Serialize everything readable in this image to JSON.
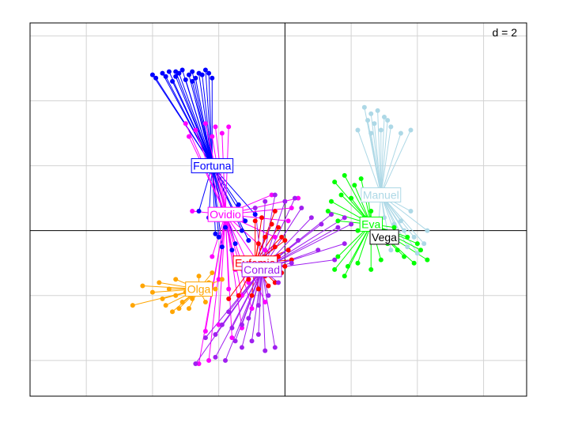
{
  "chart_data": {
    "type": "scatter",
    "title": "",
    "xlabel": "",
    "ylabel": "",
    "scale_label": "d = 2",
    "xlim": [
      -7.7,
      7.3
    ],
    "ylim": [
      -5.1,
      6.4
    ],
    "grid": true,
    "grid_step": 2,
    "axes_through_origin": true,
    "series": [
      {
        "name": "Fortuna",
        "color": "#0000ff",
        "center": [
          -2.2,
          2.0
        ],
        "points": [
          [
            -4.0,
            4.8
          ],
          [
            -3.7,
            4.85
          ],
          [
            -3.5,
            4.9
          ],
          [
            -3.3,
            4.75
          ],
          [
            -3.1,
            4.95
          ],
          [
            -2.9,
            4.8
          ],
          [
            -2.8,
            4.9
          ],
          [
            -2.6,
            4.85
          ],
          [
            -2.4,
            4.95
          ],
          [
            -2.2,
            4.7
          ],
          [
            -3.9,
            4.7
          ],
          [
            -3.4,
            4.6
          ],
          [
            -3.0,
            4.65
          ],
          [
            -2.7,
            4.7
          ],
          [
            -2.5,
            4.8
          ],
          [
            -3.6,
            4.75
          ],
          [
            -3.2,
            4.85
          ],
          [
            -2.3,
            4.85
          ],
          [
            -2.8,
            4.6
          ],
          [
            -3.3,
            4.9
          ],
          [
            -2.6,
            0.6
          ],
          [
            -2.0,
            -0.2
          ],
          [
            -1.8,
            0.1
          ],
          [
            -1.5,
            -0.4
          ],
          [
            -1.2,
            0.3
          ],
          [
            -1.6,
            -0.6
          ],
          [
            -2.3,
            0.4
          ],
          [
            -1.4,
            0.8
          ],
          [
            -1.1,
            -0.3
          ],
          [
            -1.9,
            -0.5
          ],
          [
            -1.7,
            0.4
          ],
          [
            -1.3,
            0.0
          ],
          [
            -2.1,
            -0.1
          ],
          [
            -0.9,
            0.5
          ]
        ]
      },
      {
        "name": "Ovidio",
        "color": "#ff00ff",
        "center": [
          -1.8,
          0.5
        ],
        "points": [
          [
            -3.0,
            3.3
          ],
          [
            -2.7,
            3.1
          ],
          [
            -2.4,
            3.3
          ],
          [
            -2.1,
            3.2
          ],
          [
            -1.9,
            3.0
          ],
          [
            -1.7,
            3.2
          ],
          [
            -2.9,
            2.9
          ],
          [
            -2.2,
            2.9
          ],
          [
            -2.8,
            0.6
          ],
          [
            -2.2,
            -0.8
          ],
          [
            -2.0,
            -1.5
          ],
          [
            -1.7,
            -1.8
          ],
          [
            -1.5,
            -1.2
          ],
          [
            -1.1,
            -1.6
          ],
          [
            -0.8,
            -1.0
          ],
          [
            -0.6,
            -0.6
          ],
          [
            -0.3,
            -0.2
          ],
          [
            0.2,
            0.7
          ],
          [
            0.4,
            1.0
          ],
          [
            -1.3,
            -2.0
          ],
          [
            -2.4,
            -3.1
          ],
          [
            -2.0,
            -2.9
          ],
          [
            -1.6,
            -3.3
          ],
          [
            -1.3,
            -3.0
          ],
          [
            -2.6,
            -4.1
          ],
          [
            -2.3,
            -4.0
          ],
          [
            -0.6,
            -2.2
          ],
          [
            -1.0,
            -2.4
          ],
          [
            0.1,
            0.3
          ],
          [
            -0.4,
            1.1
          ]
        ]
      },
      {
        "name": "Eufemia",
        "color": "#ff0000",
        "center": [
          -0.9,
          -1.0
        ],
        "points": [
          [
            -0.6,
            -0.2
          ],
          [
            -0.3,
            -0.5
          ],
          [
            -0.2,
            -0.8
          ],
          [
            0.0,
            -0.3
          ],
          [
            -0.5,
            -1.1
          ],
          [
            -0.1,
            -1.3
          ],
          [
            -0.8,
            -0.4
          ],
          [
            0.2,
            -0.9
          ],
          [
            -0.4,
            0.2
          ],
          [
            -0.7,
            -0.9
          ],
          [
            -0.9,
            0.3
          ],
          [
            -0.3,
            0.6
          ],
          [
            0.1,
            -0.6
          ],
          [
            -0.6,
            -1.4
          ],
          [
            -0.2,
            0.1
          ],
          [
            0.0,
            -1.1
          ],
          [
            -1.1,
            -1.5
          ],
          [
            -1.4,
            -2.0
          ],
          [
            -1.7,
            -2.1
          ],
          [
            -0.5,
            -1.7
          ],
          [
            -0.8,
            -1.8
          ],
          [
            -1.0,
            -2.0
          ],
          [
            -0.3,
            -1.6
          ],
          [
            -0.1,
            -0.2
          ],
          [
            -0.7,
            0.4
          ]
        ]
      },
      {
        "name": "Conrad",
        "color": "#a020f0",
        "center": [
          -0.7,
          -1.2
        ],
        "points": [
          [
            -0.6,
            0.9
          ],
          [
            -0.3,
            1.1
          ],
          [
            0.0,
            0.9
          ],
          [
            0.3,
            1.0
          ],
          [
            0.5,
            0.7
          ],
          [
            0.8,
            0.4
          ],
          [
            1.1,
            0.2
          ],
          [
            1.4,
            0.5
          ],
          [
            1.6,
            0.1
          ],
          [
            1.8,
            0.4
          ],
          [
            2.0,
            0.2
          ],
          [
            -0.9,
            0.7
          ],
          [
            0.2,
            -1.0
          ],
          [
            -0.2,
            -1.6
          ],
          [
            -0.5,
            -2.0
          ],
          [
            -0.8,
            -2.3
          ],
          [
            -1.1,
            -2.7
          ],
          [
            -1.3,
            -2.9
          ],
          [
            -1.6,
            -3.0
          ],
          [
            -1.9,
            -2.9
          ],
          [
            -2.1,
            -3.2
          ],
          [
            -2.4,
            -3.3
          ],
          [
            -2.1,
            -3.9
          ],
          [
            -1.8,
            -4.0
          ],
          [
            -1.3,
            -3.6
          ],
          [
            -1.0,
            -3.4
          ],
          [
            -0.6,
            -3.7
          ],
          [
            -0.3,
            -3.6
          ],
          [
            1.8,
            -0.4
          ],
          [
            1.5,
            -0.9
          ],
          [
            1.0,
            -0.6
          ],
          [
            0.4,
            -0.3
          ],
          [
            -1.5,
            -3.4
          ],
          [
            -0.8,
            -3.2
          ],
          [
            -2.7,
            -4.1
          ],
          [
            -1.7,
            -2.5
          ]
        ]
      },
      {
        "name": "Olga",
        "color": "#ffa500",
        "center": [
          -2.6,
          -1.8
        ],
        "points": [
          [
            -3.8,
            -1.6
          ],
          [
            -3.5,
            -1.8
          ],
          [
            -3.3,
            -2.0
          ],
          [
            -3.1,
            -2.2
          ],
          [
            -3.0,
            -1.9
          ],
          [
            -2.8,
            -2.1
          ],
          [
            -2.7,
            -1.7
          ],
          [
            -2.5,
            -1.9
          ],
          [
            -2.3,
            -1.6
          ],
          [
            -2.1,
            -1.8
          ],
          [
            -3.6,
            -2.3
          ],
          [
            -3.4,
            -2.5
          ],
          [
            -3.2,
            -2.4
          ],
          [
            -2.9,
            -2.4
          ],
          [
            -3.7,
            -2.1
          ],
          [
            -2.6,
            -1.4
          ],
          [
            -2.2,
            -1.3
          ],
          [
            -1.9,
            -1.5
          ],
          [
            -4.3,
            -1.7
          ],
          [
            -4.0,
            -1.9
          ],
          [
            -4.6,
            -2.3
          ],
          [
            -3.3,
            -1.5
          ],
          [
            -2.4,
            -2.2
          ]
        ]
      },
      {
        "name": "Manuel",
        "color": "#add8e6",
        "center": [
          2.9,
          1.1
        ],
        "points": [
          [
            2.4,
            3.8
          ],
          [
            2.6,
            3.6
          ],
          [
            2.8,
            3.7
          ],
          [
            3.0,
            3.5
          ],
          [
            2.7,
            3.3
          ],
          [
            2.9,
            3.1
          ],
          [
            3.2,
            3.2
          ],
          [
            3.5,
            3.0
          ],
          [
            3.8,
            3.1
          ],
          [
            2.2,
            3.1
          ],
          [
            2.5,
            3.4
          ],
          [
            3.1,
            3.4
          ],
          [
            2.6,
            3.0
          ],
          [
            3.0,
            0.4
          ],
          [
            3.3,
            0.2
          ],
          [
            3.6,
            0.0
          ],
          [
            3.9,
            -0.2
          ],
          [
            4.2,
            -0.4
          ],
          [
            3.4,
            -0.3
          ],
          [
            3.7,
            -0.5
          ],
          [
            4.0,
            -0.7
          ],
          [
            3.2,
            -0.6
          ],
          [
            2.8,
            -0.1
          ],
          [
            3.5,
            0.3
          ],
          [
            4.3,
            0.0
          ],
          [
            3.8,
            0.6
          ]
        ]
      },
      {
        "name": "Eva",
        "color": "#00ff00",
        "center": [
          2.6,
          0.2
        ],
        "points": [
          [
            1.5,
            1.5
          ],
          [
            1.8,
            1.7
          ],
          [
            2.1,
            1.4
          ],
          [
            2.3,
            1.6
          ],
          [
            1.7,
            1.1
          ],
          [
            2.0,
            1.0
          ],
          [
            1.4,
            0.9
          ],
          [
            1.6,
            0.3
          ],
          [
            2.4,
            0.4
          ],
          [
            2.6,
            0.6
          ],
          [
            2.2,
            0.0
          ],
          [
            2.8,
            -0.2
          ],
          [
            3.1,
            -0.4
          ],
          [
            3.4,
            -0.6
          ],
          [
            3.6,
            -0.8
          ],
          [
            3.9,
            -1.0
          ],
          [
            4.1,
            -0.6
          ],
          [
            4.3,
            -0.9
          ],
          [
            3.7,
            -0.2
          ],
          [
            3.3,
            0.1
          ],
          [
            1.6,
            -0.8
          ],
          [
            1.9,
            -1.1
          ],
          [
            2.2,
            -1.0
          ],
          [
            2.6,
            -1.2
          ],
          [
            1.8,
            -1.4
          ],
          [
            2.9,
            -0.9
          ],
          [
            1.3,
            0.6
          ],
          [
            2.5,
            1.2
          ],
          [
            4.0,
            -0.4
          ],
          [
            1.5,
            -1.2
          ]
        ]
      },
      {
        "name": "Vega",
        "color": "#000000",
        "center": [
          3.0,
          -0.2
        ],
        "points": []
      }
    ]
  }
}
